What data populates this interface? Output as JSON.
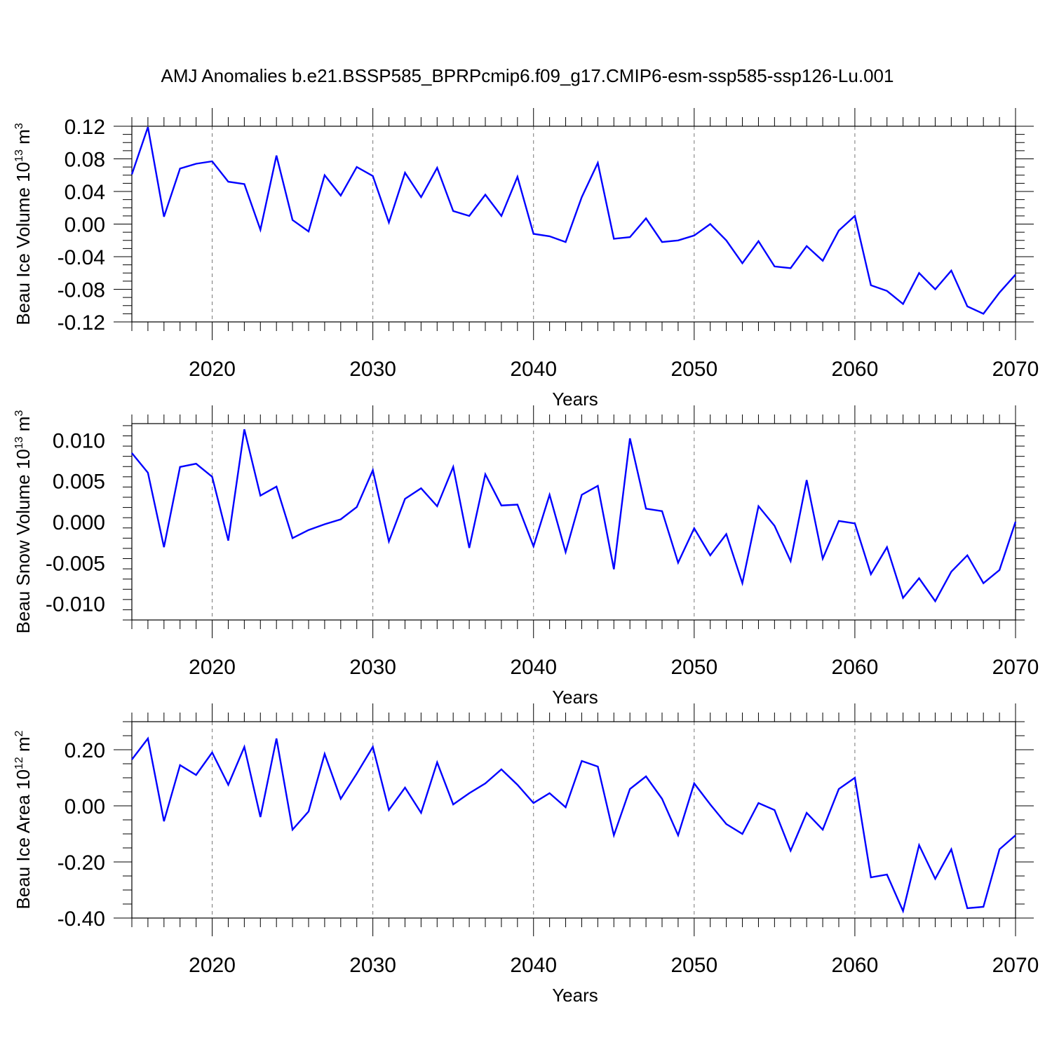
{
  "title": "AMJ Anomalies b.e21.BSSP585_BPRPcmip6.f09_g17.CMIP6-esm-ssp585-ssp126-Lu.001",
  "colors": {
    "series": "#0000ff",
    "grid": "#777777",
    "axis": "#000000"
  },
  "chart_data": [
    {
      "type": "line",
      "ylabel": "Beau Ice Volume 10",
      "ylabel_exp": "13",
      "ylabel_unit": " m",
      "ylabel_unit_exp": "3",
      "xlabel": "Years",
      "xlim": [
        2015,
        2070
      ],
      "ylim": [
        -0.12,
        0.12
      ],
      "xticks": [
        2020,
        2030,
        2040,
        2050,
        2060,
        2070
      ],
      "xtick_labels": [
        "2020",
        "2030",
        "2040",
        "2050",
        "2060",
        "2070"
      ],
      "yticks": [
        -0.12,
        -0.08,
        -0.04,
        0.0,
        0.04,
        0.08,
        0.12
      ],
      "ytick_labels": [
        "-0.12",
        "-0.08",
        "-0.04",
        "0.00",
        "0.04",
        "0.08",
        "0.12"
      ],
      "grid": "vertical dashed at major x ticks",
      "x": [
        2015,
        2016,
        2017,
        2018,
        2019,
        2020,
        2021,
        2022,
        2023,
        2024,
        2025,
        2026,
        2027,
        2028,
        2029,
        2030,
        2031,
        2032,
        2033,
        2034,
        2035,
        2036,
        2037,
        2038,
        2039,
        2040,
        2041,
        2042,
        2043,
        2044,
        2045,
        2046,
        2047,
        2048,
        2049,
        2050,
        2051,
        2052,
        2053,
        2054,
        2055,
        2056,
        2057,
        2058,
        2059,
        2060,
        2061,
        2062,
        2063,
        2064,
        2065,
        2066,
        2067,
        2068,
        2069,
        2070
      ],
      "values": [
        0.061,
        0.119,
        0.009,
        0.068,
        0.074,
        0.077,
        0.052,
        0.049,
        -0.007,
        0.084,
        0.005,
        -0.009,
        0.06,
        0.035,
        0.07,
        0.059,
        0.002,
        0.063,
        0.033,
        0.069,
        0.016,
        0.01,
        0.036,
        0.01,
        0.058,
        -0.012,
        -0.015,
        -0.022,
        0.033,
        0.075,
        -0.018,
        -0.016,
        0.007,
        -0.022,
        -0.02,
        -0.014,
        0.0,
        -0.02,
        -0.048,
        -0.021,
        -0.052,
        -0.054,
        -0.027,
        -0.045,
        -0.008,
        0.01,
        -0.075,
        -0.082,
        -0.098,
        -0.06,
        -0.08,
        -0.057,
        -0.101,
        -0.11,
        -0.084,
        -0.062
      ]
    },
    {
      "type": "line",
      "ylabel": "Beau Snow Volume 10",
      "ylabel_exp": "13",
      "ylabel_unit": " m",
      "ylabel_unit_exp": "3",
      "xlabel": "Years",
      "xlim": [
        2015,
        2070
      ],
      "ylim": [
        -0.012,
        0.012
      ],
      "xticks": [
        2020,
        2030,
        2040,
        2050,
        2060,
        2070
      ],
      "xtick_labels": [
        "2020",
        "2030",
        "2040",
        "2050",
        "2060",
        "2070"
      ],
      "yticks": [
        -0.01,
        -0.005,
        0.0,
        0.005,
        0.01
      ],
      "ytick_labels": [
        "-0.010",
        "-0.005",
        "0.000",
        "0.005",
        "0.010"
      ],
      "grid": "vertical dashed at major x ticks",
      "x": [
        2015,
        2016,
        2017,
        2018,
        2019,
        2020,
        2021,
        2022,
        2023,
        2024,
        2025,
        2026,
        2027,
        2028,
        2029,
        2030,
        2031,
        2032,
        2033,
        2034,
        2035,
        2036,
        2037,
        2038,
        2039,
        2040,
        2041,
        2042,
        2043,
        2044,
        2045,
        2046,
        2047,
        2048,
        2049,
        2050,
        2051,
        2052,
        2053,
        2054,
        2055,
        2056,
        2057,
        2058,
        2059,
        2060,
        2061,
        2062,
        2063,
        2064,
        2065,
        2066,
        2067,
        2068,
        2069,
        2070
      ],
      "values": [
        0.0084,
        0.006,
        -0.0031,
        0.0067,
        0.0071,
        0.0055,
        -0.0023,
        0.0113,
        0.0032,
        0.0043,
        -0.002,
        -0.001,
        -0.0003,
        0.0003,
        0.0018,
        0.0063,
        -0.0024,
        0.0028,
        0.0041,
        0.0019,
        0.0067,
        -0.0032,
        0.0058,
        0.002,
        0.0021,
        -0.003,
        0.0033,
        -0.0037,
        0.0033,
        0.0044,
        -0.0058,
        0.0102,
        0.0016,
        0.0013,
        -0.005,
        -0.0008,
        -0.0041,
        -0.0015,
        -0.0075,
        0.0019,
        -0.0005,
        -0.0048,
        0.0051,
        -0.0045,
        0.0001,
        -0.0002,
        -0.0064,
        -0.0031,
        -0.0093,
        -0.0069,
        -0.0097,
        -0.0061,
        -0.0041,
        -0.0075,
        -0.0059,
        0.0
      ]
    },
    {
      "type": "line",
      "ylabel": "Beau Ice Area 10",
      "ylabel_exp": "12",
      "ylabel_unit": " m",
      "ylabel_unit_exp": "2",
      "xlabel": "Years",
      "xlim": [
        2015,
        2070
      ],
      "ylim": [
        -0.4,
        0.3
      ],
      "xticks": [
        2020,
        2030,
        2040,
        2050,
        2060,
        2070
      ],
      "xtick_labels": [
        "2020",
        "2030",
        "2040",
        "2050",
        "2060",
        "2070"
      ],
      "yticks": [
        -0.4,
        -0.2,
        0.0,
        0.2
      ],
      "ytick_labels": [
        "-0.40",
        "-0.20",
        "0.00",
        "0.20"
      ],
      "grid": "vertical dashed at major x ticks",
      "x": [
        2015,
        2016,
        2017,
        2018,
        2019,
        2020,
        2021,
        2022,
        2023,
        2024,
        2025,
        2026,
        2027,
        2028,
        2029,
        2030,
        2031,
        2032,
        2033,
        2034,
        2035,
        2036,
        2037,
        2038,
        2039,
        2040,
        2041,
        2042,
        2043,
        2044,
        2045,
        2046,
        2047,
        2048,
        2049,
        2050,
        2051,
        2052,
        2053,
        2054,
        2055,
        2056,
        2057,
        2058,
        2059,
        2060,
        2061,
        2062,
        2063,
        2064,
        2065,
        2066,
        2067,
        2068,
        2069,
        2070
      ],
      "values": [
        0.165,
        0.24,
        -0.055,
        0.145,
        0.11,
        0.19,
        0.075,
        0.21,
        -0.04,
        0.24,
        -0.085,
        -0.02,
        0.185,
        0.025,
        0.115,
        0.21,
        -0.015,
        0.065,
        -0.025,
        0.155,
        0.005,
        0.045,
        0.08,
        0.13,
        0.075,
        0.01,
        0.045,
        -0.005,
        0.16,
        0.14,
        -0.105,
        0.06,
        0.105,
        0.025,
        -0.105,
        0.08,
        0.005,
        -0.065,
        -0.1,
        0.01,
        -0.015,
        -0.16,
        -0.025,
        -0.085,
        0.06,
        0.1,
        -0.255,
        -0.245,
        -0.375,
        -0.14,
        -0.26,
        -0.155,
        -0.365,
        -0.36,
        -0.155,
        -0.105
      ]
    }
  ]
}
